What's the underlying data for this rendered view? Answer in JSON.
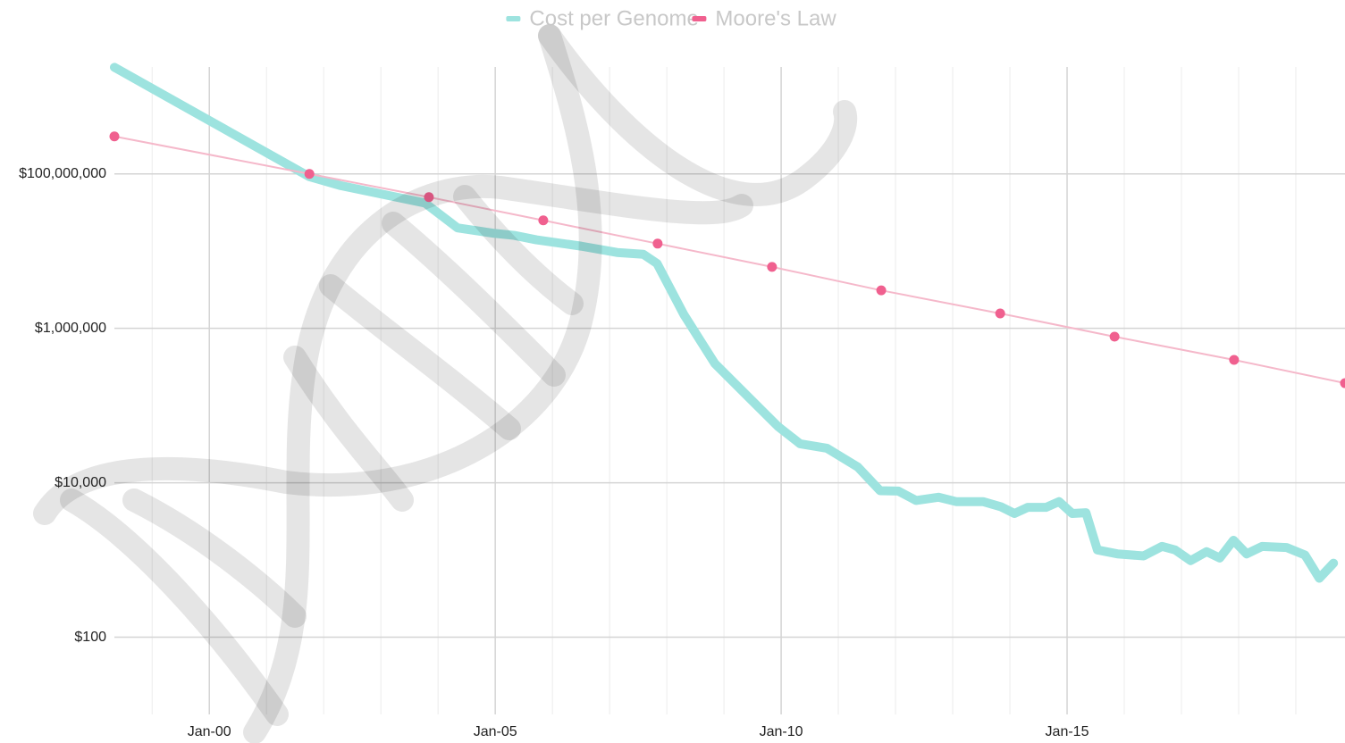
{
  "chart_data": {
    "type": "line",
    "legend": "top",
    "log_scale": true,
    "grid": true,
    "x_minor_grid": true,
    "xlim": [
      1998.34,
      2019.86
    ],
    "xticks": [
      {
        "value": 2000,
        "label": "Jan-00"
      },
      {
        "value": 2005,
        "label": "Jan-05"
      },
      {
        "value": 2010,
        "label": "Jan-10"
      },
      {
        "value": 2015,
        "label": "Jan-15"
      }
    ],
    "ylim": [
      10,
      3000000000
    ],
    "yticks": [
      {
        "value": 100,
        "label": "$100"
      },
      {
        "value": 10000,
        "label": "$10,000"
      },
      {
        "value": 1000000,
        "label": "$1,000,000"
      },
      {
        "value": 100000000,
        "label": "$100,000,000"
      }
    ],
    "series": [
      {
        "name": "Cost per Genome",
        "color": "#9de3df",
        "markers": false,
        "x": [
          1998.34,
          2001.75,
          2002.28,
          2003.77,
          2004.34,
          2004.98,
          2005.33,
          2005.72,
          2006.5,
          2007.13,
          2007.59,
          2007.83,
          2008.3,
          2008.84,
          2009.47,
          2009.94,
          2010.33,
          2010.8,
          2011.34,
          2011.73,
          2012.05,
          2012.36,
          2012.75,
          2013.06,
          2013.53,
          2013.84,
          2014.08,
          2014.31,
          2014.63,
          2014.86,
          2015.09,
          2015.33,
          2015.53,
          2015.88,
          2016.34,
          2016.66,
          2016.89,
          2017.16,
          2017.44,
          2017.67,
          2017.91,
          2018.14,
          2018.41,
          2018.84,
          2019.16,
          2019.41,
          2019.66
        ],
        "values": [
          2400000000,
          92000000,
          71000000,
          42000000,
          20000000,
          17000000,
          16000000,
          14000000,
          11600000,
          9600000,
          9100000,
          6900000,
          1500000,
          350000,
          120000,
          54000,
          32000,
          28000,
          16000,
          7900,
          7800,
          5900,
          6500,
          5700,
          5700,
          4900,
          4000,
          4800,
          4800,
          5700,
          4000,
          4100,
          1350,
          1200,
          1130,
          1500,
          1350,
          980,
          1280,
          1060,
          1800,
          1200,
          1500,
          1450,
          1160,
          580,
          910
        ]
      },
      {
        "name": "Moore's Law",
        "color": "#f0608f",
        "line_color": "#f5b8ca",
        "markers": true,
        "x": [
          1998.34,
          2001.75,
          2003.84,
          2005.84,
          2007.84,
          2009.84,
          2011.75,
          2013.83,
          2015.83,
          2017.92,
          2019.86
        ],
        "values": [
          306000000,
          100000000,
          50000000,
          25000000,
          12500000,
          6250000,
          3100000,
          1560000,
          780000,
          390000,
          195000
        ]
      }
    ]
  }
}
